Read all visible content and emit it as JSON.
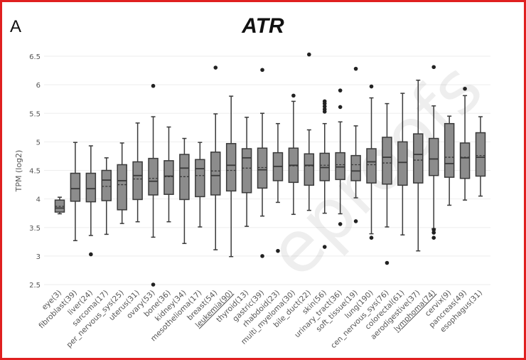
{
  "panel_label": "A",
  "watermark": "eproofs",
  "chart_data": {
    "type": "box",
    "title": "ATR",
    "xlabel": "",
    "ylabel": "TPM (log2)",
    "ylim": [
      2.4,
      6.6
    ],
    "yticks": [
      2.5,
      3,
      3.5,
      4,
      4.5,
      5,
      5.5,
      6,
      6.5
    ],
    "ytick_labels": [
      "2.5",
      "3",
      "3.5",
      "4",
      "4.5",
      "5",
      "5.5",
      "6",
      "6.5"
    ],
    "grid": true,
    "categories": [
      "eye(3)",
      "fibroblast(39)",
      "liver(24)",
      "sarcoma(17)",
      "per_nervous_sys(25)",
      "uterus(31)",
      "ovary(53)",
      "bone(36)",
      "kidney(34)",
      "mesothelioma(17)",
      "breast(54)",
      "leukemia(90)",
      "thyroid(13)",
      "gastric(39)",
      "rhabdoid(23)",
      "multi_myeloma(30)",
      "bile_duct(22)",
      "skin(56)",
      "urinary_tract(36)",
      "soft_tissue(19)",
      "lung(190)",
      "cen_nervous_sys(76)",
      "colorectal(61)",
      "aerodigestive(37)",
      "lymphoma(74)",
      "cervix(9)",
      "pancreas(49)",
      "esophagus(31)"
    ],
    "underlined": [
      "leukemia(90)",
      "lymphoma(74)"
    ],
    "boxes": [
      {
        "min": 3.74,
        "q1": 3.77,
        "median": 3.84,
        "q3": 3.98,
        "max": 4.03,
        "mean": 3.87,
        "outliers": []
      },
      {
        "min": 3.27,
        "q1": 3.96,
        "median": 4.18,
        "q3": 4.45,
        "max": 4.99,
        "mean": 4.18,
        "outliers": []
      },
      {
        "min": 3.36,
        "q1": 3.95,
        "median": 4.18,
        "q3": 4.45,
        "max": 4.93,
        "mean": 4.18,
        "outliers": [
          3.03
        ]
      },
      {
        "min": 3.38,
        "q1": 3.97,
        "median": 4.33,
        "q3": 4.5,
        "max": 4.72,
        "mean": 4.22,
        "outliers": []
      },
      {
        "min": 3.57,
        "q1": 3.81,
        "median": 4.32,
        "q3": 4.6,
        "max": 4.98,
        "mean": 4.25,
        "outliers": []
      },
      {
        "min": 3.6,
        "q1": 3.99,
        "median": 4.41,
        "q3": 4.65,
        "max": 5.33,
        "mean": 4.35,
        "outliers": []
      },
      {
        "min": 3.33,
        "q1": 4.07,
        "median": 4.31,
        "q3": 4.71,
        "max": 5.44,
        "mean": 4.36,
        "outliers": [
          5.98,
          2.5
        ]
      },
      {
        "min": 3.6,
        "q1": 4.08,
        "median": 4.4,
        "q3": 4.67,
        "max": 5.26,
        "mean": 4.39,
        "outliers": []
      },
      {
        "min": 3.22,
        "q1": 3.99,
        "median": 4.54,
        "q3": 4.78,
        "max": 5.06,
        "mean": 4.39,
        "outliers": []
      },
      {
        "min": 3.51,
        "q1": 4.04,
        "median": 4.53,
        "q3": 4.69,
        "max": 4.99,
        "mean": 4.41,
        "outliers": []
      },
      {
        "min": 3.11,
        "q1": 4.07,
        "median": 4.41,
        "q3": 4.82,
        "max": 5.49,
        "mean": 4.49,
        "outliers": [
          6.3
        ]
      },
      {
        "min": 2.99,
        "q1": 4.14,
        "median": 4.59,
        "q3": 4.97,
        "max": 5.8,
        "mean": 4.5,
        "outliers": []
      },
      {
        "min": 3.52,
        "q1": 4.11,
        "median": 4.72,
        "q3": 4.88,
        "max": 5.43,
        "mean": 4.54,
        "outliers": []
      },
      {
        "min": 3.7,
        "q1": 4.19,
        "median": 4.51,
        "q3": 4.89,
        "max": 5.5,
        "mean": 4.55,
        "outliers": [
          6.26,
          3.0
        ]
      },
      {
        "min": 3.94,
        "q1": 4.32,
        "median": 4.57,
        "q3": 4.81,
        "max": 5.32,
        "mean": 4.57,
        "outliers": [
          3.09
        ]
      },
      {
        "min": 3.73,
        "q1": 4.29,
        "median": 4.59,
        "q3": 4.89,
        "max": 5.71,
        "mean": 4.58,
        "outliers": [
          5.81
        ]
      },
      {
        "min": 3.8,
        "q1": 4.24,
        "median": 4.59,
        "q3": 4.79,
        "max": 5.21,
        "mean": 4.58,
        "outliers": [
          6.53
        ]
      },
      {
        "min": 3.75,
        "q1": 4.32,
        "median": 4.55,
        "q3": 4.8,
        "max": 5.32,
        "mean": 4.59,
        "outliers": [
          5.71,
          5.67,
          5.62,
          5.57,
          5.53,
          3.16
        ]
      },
      {
        "min": 3.74,
        "q1": 4.34,
        "median": 4.56,
        "q3": 4.81,
        "max": 5.35,
        "mean": 4.6,
        "outliers": [
          5.9,
          5.61,
          3.56
        ]
      },
      {
        "min": 4.02,
        "q1": 4.32,
        "median": 4.49,
        "q3": 4.76,
        "max": 5.28,
        "mean": 4.6,
        "outliers": [
          6.28,
          3.61
        ]
      },
      {
        "min": 3.39,
        "q1": 4.28,
        "median": 4.65,
        "q3": 4.88,
        "max": 5.77,
        "mean": 4.6,
        "outliers": [
          5.97,
          3.32
        ]
      },
      {
        "min": 3.51,
        "q1": 4.26,
        "median": 4.73,
        "q3": 5.08,
        "max": 5.67,
        "mean": 4.63,
        "outliers": [
          2.88
        ]
      },
      {
        "min": 3.37,
        "q1": 4.24,
        "median": 4.64,
        "q3": 5.0,
        "max": 5.85,
        "mean": 4.64,
        "outliers": []
      },
      {
        "min": 3.09,
        "q1": 4.28,
        "median": 4.78,
        "q3": 5.14,
        "max": 6.08,
        "mean": 4.68,
        "outliers": []
      },
      {
        "min": 3.48,
        "q1": 4.41,
        "median": 4.7,
        "q3": 5.06,
        "max": 5.63,
        "mean": 4.7,
        "outliers": [
          6.31,
          3.46,
          3.41,
          3.32
        ]
      },
      {
        "min": 3.89,
        "q1": 4.38,
        "median": 4.62,
        "q3": 5.32,
        "max": 5.45,
        "mean": 4.73,
        "outliers": []
      },
      {
        "min": 3.98,
        "q1": 4.36,
        "median": 4.72,
        "q3": 4.98,
        "max": 5.81,
        "mean": 4.73,
        "outliers": [
          5.93
        ]
      },
      {
        "min": 4.05,
        "q1": 4.4,
        "median": 4.73,
        "q3": 5.16,
        "max": 5.44,
        "mean": 4.76,
        "outliers": []
      }
    ],
    "colors": {
      "box_fill": "#8c8c8c",
      "stroke": "#3a3a3a",
      "grid": "#eeeeee",
      "frame": "#e02020"
    }
  }
}
